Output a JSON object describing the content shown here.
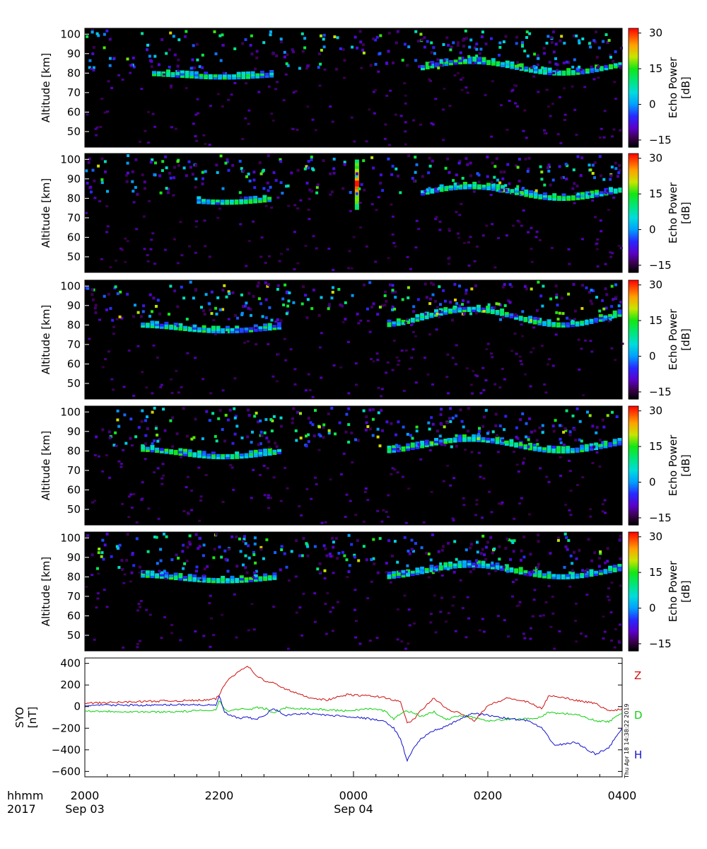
{
  "figure": {
    "year_label": "2017",
    "time_unit_label": "hhmm",
    "time_ticks": [
      "2000",
      "2200",
      "0000",
      "0200",
      "0400"
    ],
    "date_labels": [
      "Sep 03",
      "Sep 04"
    ],
    "timestamp": "Thu Apr 18 14:38:22 2019"
  },
  "chart_data": [
    {
      "type": "heatmap",
      "panel": 1,
      "ylabel": "Altitude [km]",
      "yticks": [
        50,
        60,
        70,
        80,
        90,
        100
      ],
      "ylim": [
        42,
        103
      ],
      "x": "Sep 03 2000 – Sep 04 0400 UT",
      "colorbar": {
        "label": "Echo Power [dB]",
        "ticks": [
          30,
          15,
          0,
          -15
        ],
        "range": [
          -18,
          32
        ]
      },
      "layers": [
        {
          "from": "2100",
          "to": "2245",
          "altitude_km": [
            78,
            80
          ]
        },
        {
          "from": "0100",
          "to": "0400",
          "altitude_km": [
            80,
            86
          ]
        }
      ]
    },
    {
      "type": "heatmap",
      "panel": 2,
      "ylabel": "Altitude [km]",
      "yticks": [
        50,
        60,
        70,
        80,
        90,
        100
      ],
      "ylim": [
        42,
        103
      ],
      "colorbar": {
        "label": "Echo Power [dB]",
        "ticks": [
          30,
          15,
          0,
          -15
        ],
        "range": [
          -18,
          32
        ]
      },
      "layers": [
        {
          "from": "2140",
          "to": "2245",
          "altitude_km": [
            78,
            81
          ]
        },
        {
          "from": "0100",
          "to": "0400",
          "altitude_km": [
            80,
            86
          ]
        }
      ],
      "strong_echo": {
        "time": "0000",
        "altitude_km": [
          75,
          100
        ],
        "peak_db": 30
      }
    },
    {
      "type": "heatmap",
      "panel": 3,
      "ylabel": "Altitude [km]",
      "yticks": [
        50,
        60,
        70,
        80,
        90,
        100
      ],
      "ylim": [
        42,
        103
      ],
      "colorbar": {
        "label": "Echo Power [dB]",
        "ticks": [
          30,
          15,
          0,
          -15
        ],
        "range": [
          -18,
          32
        ]
      },
      "layers": [
        {
          "from": "2050",
          "to": "2255",
          "altitude_km": [
            77,
            80
          ]
        },
        {
          "from": "0030",
          "to": "0400",
          "altitude_km": [
            80,
            88
          ]
        }
      ]
    },
    {
      "type": "heatmap",
      "panel": 4,
      "ylabel": "Altitude [km]",
      "yticks": [
        50,
        60,
        70,
        80,
        90,
        100
      ],
      "ylim": [
        42,
        103
      ],
      "colorbar": {
        "label": "Echo Power [dB]",
        "ticks": [
          30,
          15,
          0,
          -15
        ],
        "range": [
          -18,
          32
        ]
      },
      "layers": [
        {
          "from": "2050",
          "to": "2255",
          "altitude_km": [
            77,
            81
          ]
        },
        {
          "from": "0030",
          "to": "0400",
          "altitude_km": [
            80,
            86
          ]
        }
      ]
    },
    {
      "type": "heatmap",
      "panel": 5,
      "ylabel": "Altitude [km]",
      "yticks": [
        50,
        60,
        70,
        80,
        90,
        100
      ],
      "ylim": [
        42,
        103
      ],
      "colorbar": {
        "label": "Echo Power [dB]",
        "ticks": [
          30,
          15,
          0,
          -15
        ],
        "range": [
          -18,
          32
        ]
      },
      "layers": [
        {
          "from": "2050",
          "to": "2250",
          "altitude_km": [
            78,
            81
          ]
        },
        {
          "from": "0030",
          "to": "0400",
          "altitude_km": [
            80,
            86
          ]
        }
      ]
    },
    {
      "type": "line",
      "panel": 6,
      "ylabel": "SYO [nT]",
      "yticks": [
        400,
        200,
        0,
        -200,
        -400,
        -600
      ],
      "ylim": [
        -650,
        450
      ],
      "x_hours_since_2000": [
        0,
        0.5,
        1.0,
        1.5,
        1.8,
        1.95,
        2.0,
        2.08,
        2.15,
        2.3,
        2.42,
        2.55,
        2.7,
        2.8,
        3.0,
        3.3,
        3.6,
        3.9,
        4.2,
        4.4,
        4.5,
        4.6,
        4.7,
        4.8,
        4.9,
        5.0,
        5.2,
        5.4,
        5.6,
        5.8,
        6.0,
        6.3,
        6.6,
        6.8,
        6.9,
        7.0,
        7.3,
        7.6,
        7.8,
        8.0
      ],
      "series": [
        {
          "name": "Z",
          "color": "#d01010",
          "values": [
            30,
            40,
            50,
            55,
            60,
            70,
            110,
            200,
            260,
            330,
            380,
            290,
            230,
            220,
            160,
            90,
            60,
            110,
            100,
            90,
            80,
            60,
            40,
            -150,
            -120,
            -40,
            80,
            -30,
            -60,
            -130,
            10,
            80,
            40,
            -20,
            90,
            100,
            60,
            30,
            -40,
            -20
          ]
        },
        {
          "name": "D",
          "color": "#10d010",
          "values": [
            -40,
            -45,
            -50,
            -45,
            -35,
            -30,
            60,
            -30,
            -40,
            -20,
            -30,
            -10,
            -20,
            -60,
            -10,
            -20,
            -30,
            -40,
            -20,
            -30,
            -50,
            -120,
            -60,
            -40,
            -60,
            -90,
            -50,
            -120,
            -80,
            -100,
            -130,
            -120,
            -110,
            -100,
            -50,
            -60,
            -70,
            -130,
            -140,
            -60
          ]
        },
        {
          "name": "H",
          "color": "#1010d0",
          "values": [
            10,
            15,
            12,
            20,
            15,
            10,
            100,
            -50,
            -80,
            -110,
            -100,
            -120,
            -70,
            -20,
            -80,
            -60,
            -80,
            -90,
            -110,
            -130,
            -150,
            -200,
            -300,
            -500,
            -380,
            -300,
            -220,
            -180,
            -110,
            -60,
            -80,
            -110,
            -130,
            -200,
            -280,
            -360,
            -330,
            -440,
            -380,
            -200
          ]
        }
      ]
    }
  ]
}
